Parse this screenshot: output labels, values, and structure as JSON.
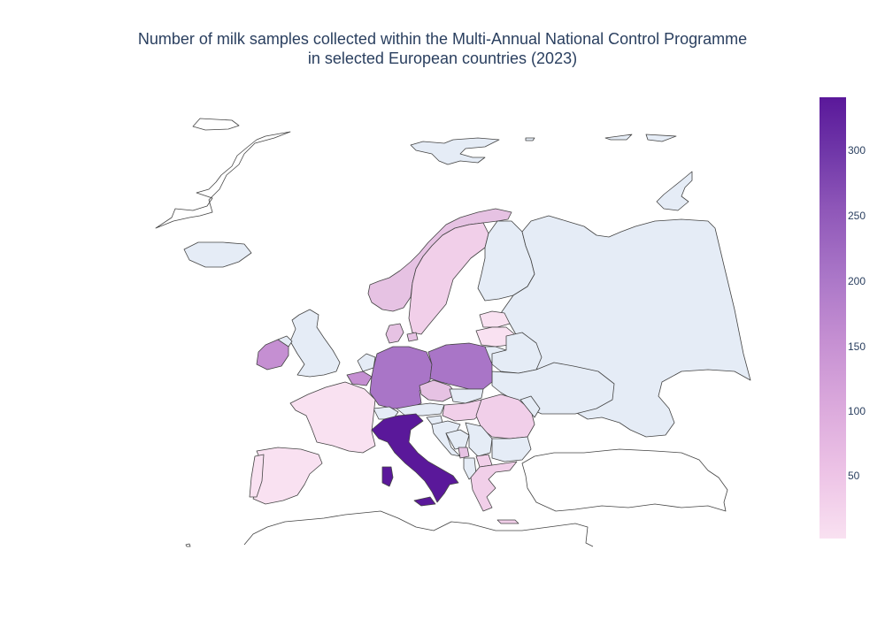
{
  "title": {
    "line1": "Number of milk samples collected within the Multi-Annual National Control Programme",
    "line2": "in selected European countries (2023)"
  },
  "colors": {
    "no_data": "#e5ecf6",
    "border": "#444444",
    "scale": [
      "#f9e1f1",
      "#edc3e6",
      "#dba9dc",
      "#c58fd2",
      "#a975c7",
      "#8e56b8",
      "#6f36a8",
      "#5a189a"
    ]
  },
  "colorbar": {
    "min": 0,
    "max": 340,
    "ticks": [
      {
        "value": 50,
        "label": "50"
      },
      {
        "value": 100,
        "label": "100"
      },
      {
        "value": 150,
        "label": "150"
      },
      {
        "value": 200,
        "label": "200"
      },
      {
        "value": 250,
        "label": "250"
      },
      {
        "value": 300,
        "label": "300"
      }
    ]
  }
}
